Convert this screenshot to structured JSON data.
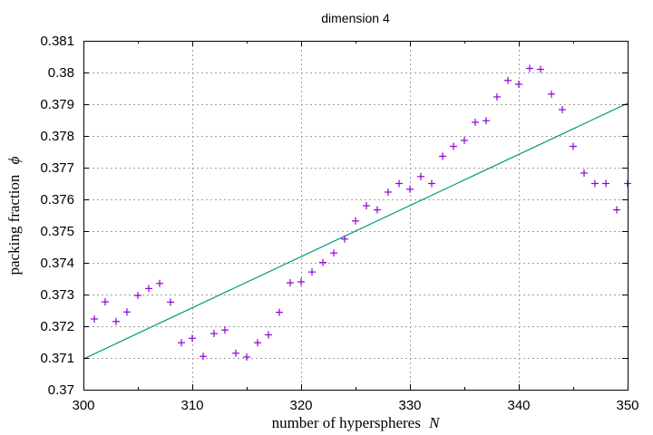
{
  "chart_data": {
    "type": "scatter",
    "title": "dimension 4",
    "xlabel": "number of hyperspheres",
    "xlabel_var": "N",
    "ylabel": "packing fraction",
    "ylabel_var": "ϕ",
    "xlim": [
      300,
      350
    ],
    "ylim": [
      0.37,
      0.381
    ],
    "xticks": [
      300,
      310,
      320,
      330,
      340,
      350
    ],
    "yticks": [
      0.37,
      0.371,
      0.372,
      0.373,
      0.374,
      0.375,
      0.376,
      0.377,
      0.378,
      0.379,
      0.38,
      0.381
    ],
    "xtick_labels": [
      "300",
      "310",
      "320",
      "330",
      "340",
      "350"
    ],
    "ytick_labels": [
      "0.37",
      "0.371",
      "0.372",
      "0.373",
      "0.374",
      "0.375",
      "0.376",
      "0.377",
      "0.378",
      "0.379",
      "0.38",
      "0.381"
    ],
    "grid": true,
    "series": [
      {
        "kind": "points",
        "color": "#9400d3",
        "x": [
          301,
          302,
          303,
          304,
          305,
          306,
          307,
          308,
          309,
          310,
          311,
          312,
          313,
          314,
          315,
          316,
          317,
          318,
          319,
          320,
          321,
          322,
          323,
          324,
          325,
          326,
          327,
          328,
          329,
          330,
          331,
          332,
          333,
          334,
          335,
          336,
          337,
          338,
          339,
          340,
          341,
          342,
          343,
          344,
          345,
          346,
          347,
          348,
          349,
          350
        ],
        "y": [
          0.37223,
          0.37277,
          0.37215,
          0.37245,
          0.37297,
          0.37319,
          0.37335,
          0.37276,
          0.37148,
          0.37162,
          0.37105,
          0.37177,
          0.37188,
          0.37115,
          0.37103,
          0.37148,
          0.37173,
          0.37244,
          0.37337,
          0.3734,
          0.37371,
          0.37401,
          0.37431,
          0.37475,
          0.37532,
          0.3758,
          0.37567,
          0.37623,
          0.3765,
          0.37632,
          0.37672,
          0.3765,
          0.37736,
          0.37767,
          0.37786,
          0.37843,
          0.37848,
          0.37923,
          0.37975,
          0.37963,
          0.38013,
          0.3801,
          0.37932,
          0.37883,
          0.37767,
          0.37683,
          0.3765,
          0.3765,
          0.37567,
          0.3765
        ]
      },
      {
        "kind": "line",
        "color": "#009e73",
        "x": [
          300,
          350
        ],
        "y": [
          0.37097,
          0.37903
        ]
      }
    ]
  }
}
